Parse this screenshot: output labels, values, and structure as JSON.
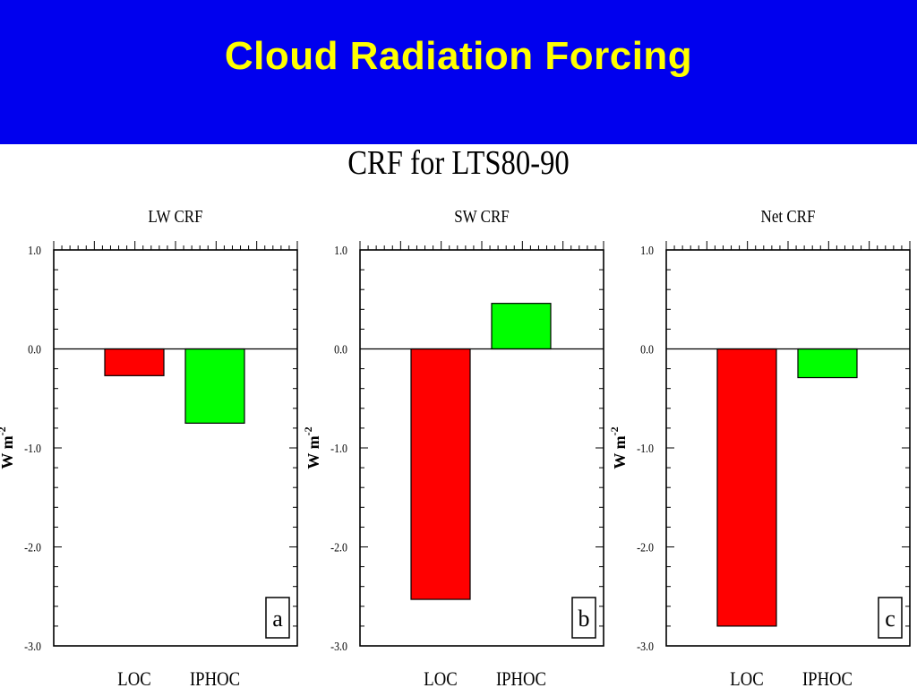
{
  "slide": {
    "title": "Cloud Radiation Forcing"
  },
  "figure": {
    "title": "CRF for LTS80-90"
  },
  "colors": {
    "banner": "#0000ee",
    "banner_text": "#ffff00",
    "LOC": "#ff0000",
    "IPHOC": "#00ff00"
  },
  "chart_data": [
    {
      "type": "bar",
      "title": "LW CRF",
      "panel_label": "a",
      "categories": [
        "LOC",
        "IPHOC"
      ],
      "values": [
        -0.27,
        -0.75
      ],
      "ylabel": "W m",
      "ylabel_superscript": "-2",
      "ylim": [
        -3.0,
        1.0
      ],
      "yticks": [
        1.0,
        0.0,
        -1.0,
        -2.0,
        -3.0
      ],
      "ytick_labels": [
        "1.0",
        "0.0",
        "-1.0",
        "-2.0",
        "-3.0"
      ],
      "grid": false
    },
    {
      "type": "bar",
      "title": "SW CRF",
      "panel_label": "b",
      "categories": [
        "LOC",
        "IPHOC"
      ],
      "values": [
        -2.53,
        0.46
      ],
      "ylabel": "W m",
      "ylabel_superscript": "-2",
      "ylim": [
        -3.0,
        1.0
      ],
      "yticks": [
        1.0,
        0.0,
        -1.0,
        -2.0,
        -3.0
      ],
      "ytick_labels": [
        "1.0",
        "0.0",
        "-1.0",
        "-2.0",
        "-3.0"
      ],
      "grid": false
    },
    {
      "type": "bar",
      "title": "Net CRF",
      "panel_label": "c",
      "categories": [
        "LOC",
        "IPHOC"
      ],
      "values": [
        -2.8,
        -0.29
      ],
      "ylabel": "W m",
      "ylabel_superscript": "-2",
      "ylim": [
        -3.0,
        1.0
      ],
      "yticks": [
        1.0,
        0.0,
        -1.0,
        -2.0,
        -3.0
      ],
      "ytick_labels": [
        "1.0",
        "0.0",
        "-1.0",
        "-2.0",
        "-3.0"
      ],
      "grid": false
    }
  ]
}
